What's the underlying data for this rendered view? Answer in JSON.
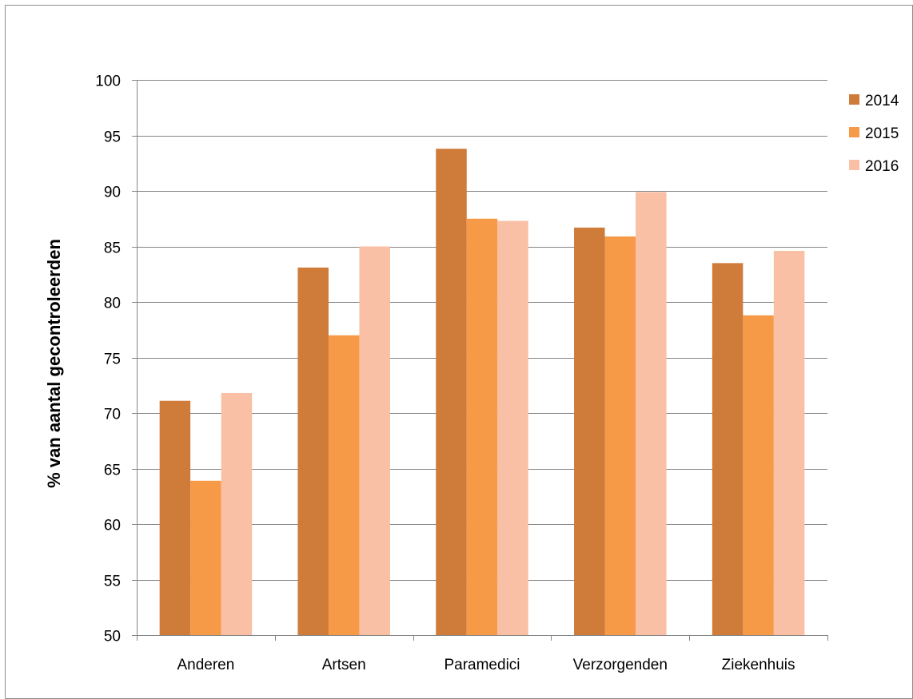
{
  "chart_data": {
    "type": "bar",
    "title": "",
    "xlabel": "",
    "ylabel": "% van aantal gecontroleerden",
    "ylim": [
      50,
      100
    ],
    "yticks": [
      50,
      55,
      60,
      65,
      70,
      75,
      80,
      85,
      90,
      95,
      100
    ],
    "grid": true,
    "legend_position": "right",
    "categories": [
      "Anderen",
      "Artsen",
      "Paramedici",
      "Verzorgenden",
      "Ziekenhuis"
    ],
    "series": [
      {
        "name": "2014",
        "color": "#CF7B3A",
        "values": [
          71.1,
          83.1,
          93.8,
          86.7,
          83.5
        ]
      },
      {
        "name": "2015",
        "color": "#F79A48",
        "values": [
          63.9,
          77.0,
          87.5,
          85.9,
          78.8
        ]
      },
      {
        "name": "2016",
        "color": "#F9C0A5",
        "values": [
          71.8,
          85.0,
          87.3,
          89.9,
          84.6
        ]
      }
    ]
  }
}
